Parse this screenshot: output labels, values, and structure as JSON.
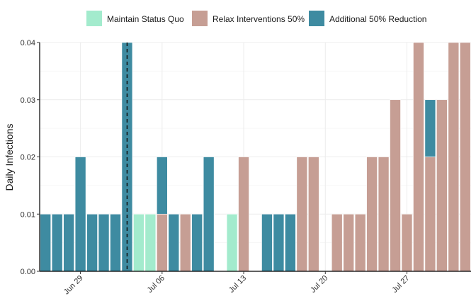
{
  "chart_data": {
    "type": "bar",
    "stacked": true,
    "ylabel": "Daily Infections",
    "xlabel": "",
    "ylim": [
      0,
      0.04
    ],
    "yticks": [
      0,
      0.01,
      0.02,
      0.03,
      0.04
    ],
    "ytick_labels": [
      "0.00",
      "0.01",
      "0.02",
      "0.03",
      "0.04"
    ],
    "x_start_date": "2020-06-26",
    "xticks": [
      {
        "date": "2020-06-29",
        "label": "Jun 29"
      },
      {
        "date": "2020-07-06",
        "label": "Jul 06"
      },
      {
        "date": "2020-07-13",
        "label": "Jul 13"
      },
      {
        "date": "2020-07-20",
        "label": "Jul 20"
      },
      {
        "date": "2020-07-27",
        "label": "Jul 27"
      }
    ],
    "reference_line": {
      "date": "2020-07-03",
      "style": "dashed"
    },
    "legend_position": "top",
    "grid": true,
    "series": [
      {
        "name": "Maintain Status Quo",
        "color": "#A3EBCD",
        "values": [
          0,
          0,
          0,
          0,
          0,
          0,
          0,
          0,
          0.01,
          0.01,
          0,
          0,
          0,
          0,
          0,
          0,
          0.01,
          0,
          0,
          0,
          0,
          0,
          0,
          0,
          0,
          0,
          0,
          0,
          0,
          0,
          0,
          0,
          0,
          0,
          0,
          0,
          0
        ]
      },
      {
        "name": "Relax Interventions 50%",
        "color": "#C69E94",
        "values": [
          0,
          0,
          0,
          0,
          0,
          0,
          0,
          0,
          0,
          0,
          0.01,
          0,
          0.01,
          0,
          0,
          0,
          0,
          0.02,
          0,
          0,
          0,
          0,
          0.02,
          0.02,
          0,
          0.01,
          0.01,
          0.01,
          0.02,
          0.02,
          0.03,
          0.01,
          0.04,
          0.02,
          0.03,
          0.04,
          0.04
        ]
      },
      {
        "name": "Additional 50% Reduction",
        "color": "#3E8BA1",
        "values": [
          0.01,
          0.01,
          0.01,
          0.02,
          0.01,
          0.01,
          0.01,
          0.04,
          0,
          0,
          0.01,
          0.01,
          0,
          0.01,
          0.02,
          0,
          0,
          0,
          0,
          0.01,
          0.01,
          0.01,
          0,
          0,
          0,
          0,
          0,
          0,
          0,
          0,
          0,
          0,
          0,
          0.01,
          0,
          0,
          0
        ]
      }
    ]
  }
}
